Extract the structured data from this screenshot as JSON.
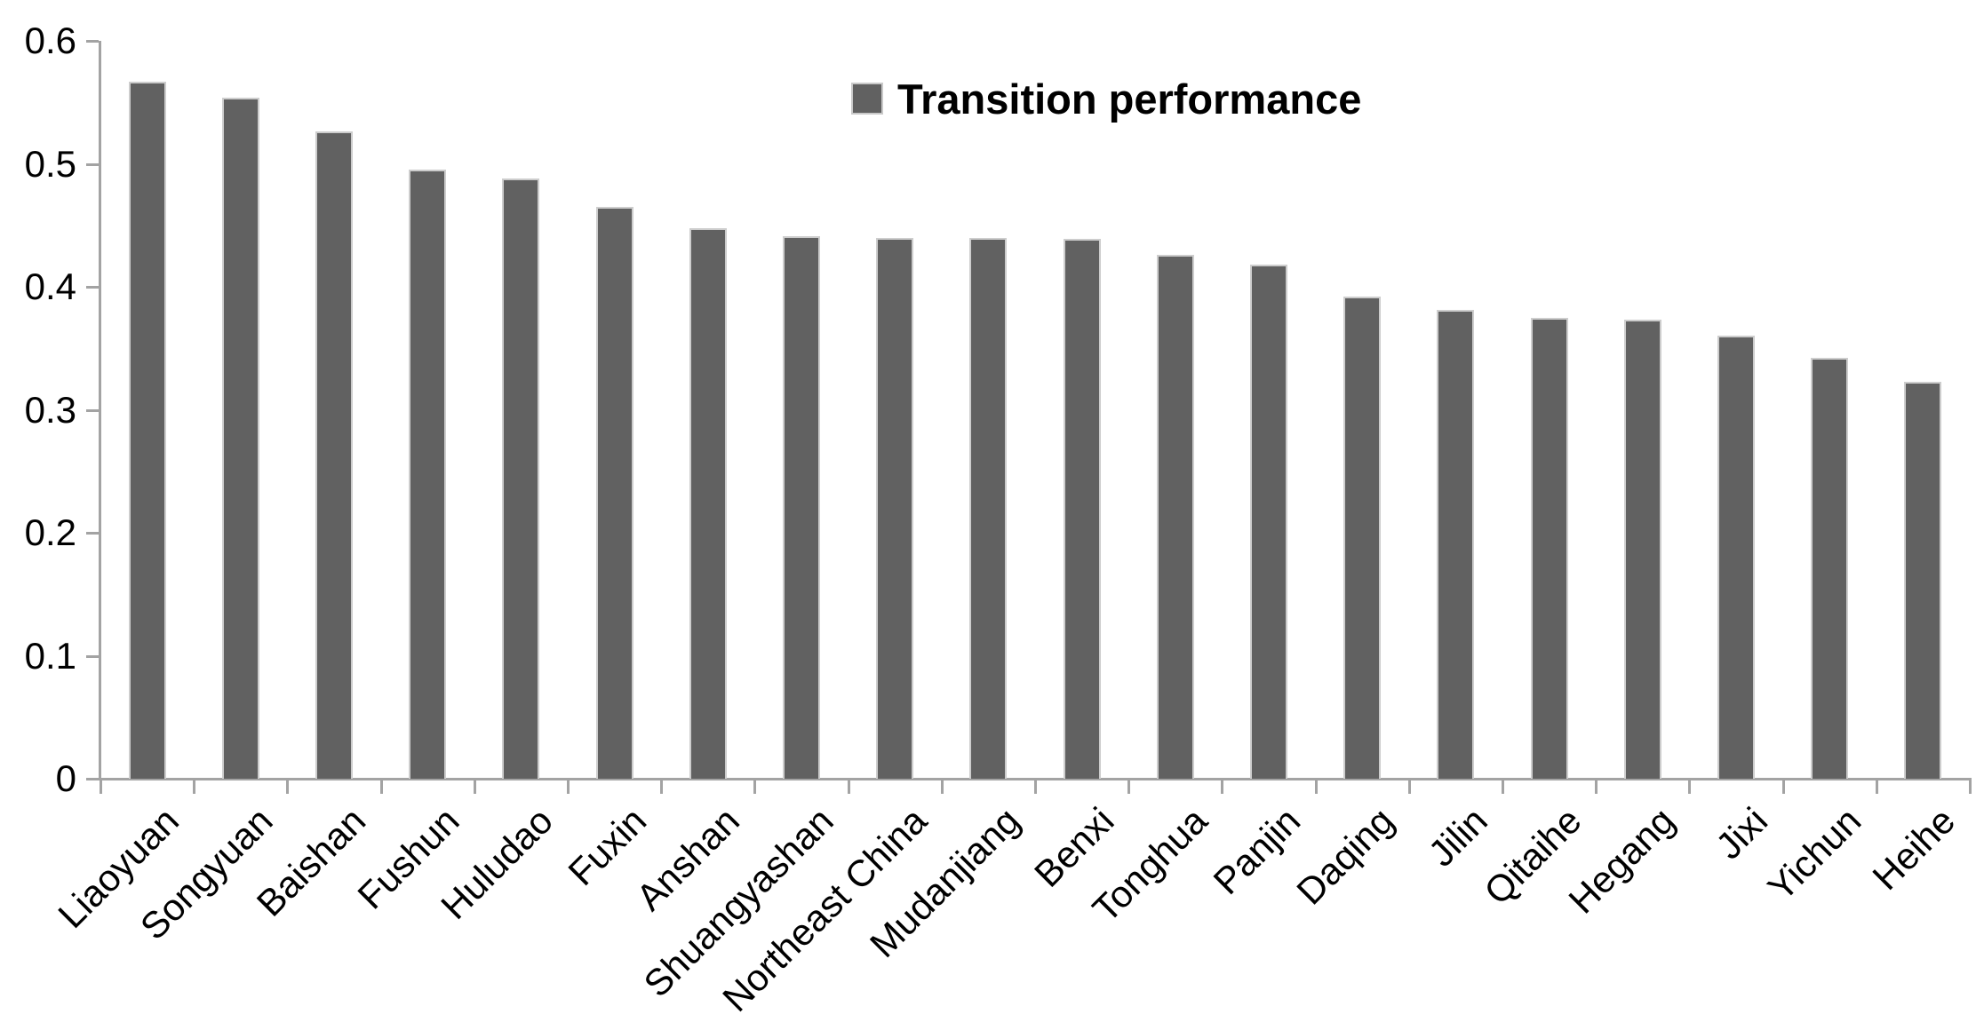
{
  "chart_data": {
    "type": "bar",
    "title": "",
    "xlabel": "",
    "ylabel": "",
    "legend_label": "Transition performance",
    "legend_position": "top-center",
    "grid": false,
    "categories": [
      "Liaoyuan",
      "Songyuan",
      "Baishan",
      "Fushun",
      "Huludao",
      "Fuxin",
      "Anshan",
      "Shuangyashan",
      "Northeast China",
      "Mudanjiang",
      "Benxi",
      "Tonghua",
      "Panjin",
      "Daqing",
      "Jilin",
      "Qitaihe",
      "Hegang",
      "Jixi",
      "Yichun",
      "Heihe"
    ],
    "series": [
      {
        "name": "Transition performance",
        "values": [
          0.567,
          0.554,
          0.526,
          0.495,
          0.488,
          0.465,
          0.448,
          0.441,
          0.44,
          0.44,
          0.439,
          0.426,
          0.418,
          0.392,
          0.381,
          0.375,
          0.373,
          0.36,
          0.342,
          0.323
        ]
      }
    ],
    "ylim": [
      0,
      0.6
    ],
    "ytick_labels": [
      "0",
      "0.1",
      "0.2",
      "0.3",
      "0.4",
      "0.5",
      "0.6"
    ],
    "yticks": [
      0,
      0.1,
      0.2,
      0.3,
      0.4,
      0.5,
      0.6
    ],
    "colors": {
      "bar_fill": "#616161",
      "bar_outline": "#cdcdcd",
      "axis": "#a3a3a3",
      "text": "#000000",
      "background": "#ffffff"
    }
  }
}
